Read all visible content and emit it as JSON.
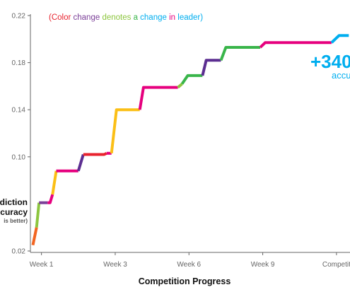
{
  "colors": {
    "axis": "#666666",
    "tick_text": "#666666",
    "red": "#e8232e",
    "orange": "#f26522",
    "pink": "#e6007e",
    "green": "#8dc63f",
    "blue": "#00aeef",
    "purple": "#7b3f98",
    "violet": "#5c2e91",
    "yellow": "#fbbf16",
    "darkgreen": "#39b54a"
  },
  "legend_note": {
    "words": [
      {
        "text": "(Color",
        "color": "#e8232e"
      },
      {
        "text": "change",
        "color": "#7b3f98"
      },
      {
        "text": "denotes",
        "color": "#8dc63f"
      },
      {
        "text": "a",
        "color": "#39b54a"
      },
      {
        "text": "change",
        "color": "#00aeef"
      },
      {
        "text": "in",
        "color": "#e6007e"
      },
      {
        "text": "leader)",
        "color": "#00aeef"
      }
    ]
  },
  "annotation": {
    "big": "+340",
    "sub": "accu",
    "color": "#00aeef"
  },
  "chart_data": {
    "type": "line",
    "xlabel": "Competition Progress",
    "ylabel_lines": [
      "diction",
      "curacy"
    ],
    "ylabel_sub": "is better)",
    "x_tick_labels": [
      "Week 1",
      "Week 3",
      "Week 6",
      "Week 9",
      "Competit"
    ],
    "x_tick_values": [
      0,
      3,
      6,
      9,
      12
    ],
    "y_tick_labels": [
      "0.02",
      "0.10",
      "0.14",
      "0.18",
      "0.22"
    ],
    "y_tick_values": [
      0.02,
      0.1,
      0.14,
      0.18,
      0.22
    ],
    "xlim": [
      -0.45,
      12.55
    ],
    "ylim": [
      0.02,
      0.22
    ],
    "grid": false,
    "series": [
      {
        "color": "#f26522",
        "points": [
          [
            -0.35,
            0.025
          ],
          [
            -0.2,
            0.04
          ]
        ]
      },
      {
        "color": "#8dc63f",
        "points": [
          [
            -0.2,
            0.04
          ],
          [
            -0.1,
            0.061
          ]
        ]
      },
      {
        "color": "#7b3f98",
        "points": [
          [
            -0.1,
            0.061
          ],
          [
            0.25,
            0.061
          ]
        ]
      },
      {
        "color": "#e6007e",
        "points": [
          [
            0.25,
            0.061
          ],
          [
            0.35,
            0.061
          ],
          [
            0.45,
            0.068
          ]
        ]
      },
      {
        "color": "#fbbf16",
        "points": [
          [
            0.45,
            0.068
          ],
          [
            0.6,
            0.088
          ]
        ]
      },
      {
        "color": "#e6007e",
        "points": [
          [
            0.6,
            0.088
          ],
          [
            1.5,
            0.088
          ]
        ]
      },
      {
        "color": "#5c2e91",
        "points": [
          [
            1.5,
            0.088
          ],
          [
            1.7,
            0.102
          ]
        ]
      },
      {
        "color": "#e8232e",
        "points": [
          [
            1.7,
            0.102
          ],
          [
            2.55,
            0.102
          ],
          [
            2.65,
            0.103
          ]
        ]
      },
      {
        "color": "#e6007e",
        "points": [
          [
            2.65,
            0.103
          ],
          [
            2.85,
            0.103
          ]
        ]
      },
      {
        "color": "#fbbf16",
        "points": [
          [
            2.85,
            0.103
          ],
          [
            3.05,
            0.14
          ],
          [
            4.0,
            0.14
          ]
        ]
      },
      {
        "color": "#e6007e",
        "points": [
          [
            4.0,
            0.14
          ],
          [
            4.15,
            0.159
          ],
          [
            5.55,
            0.159
          ]
        ]
      },
      {
        "color": "#8dc63f",
        "points": [
          [
            5.55,
            0.159
          ],
          [
            5.72,
            0.162
          ]
        ]
      },
      {
        "color": "#39b54a",
        "points": [
          [
            5.72,
            0.162
          ],
          [
            5.95,
            0.169
          ],
          [
            6.55,
            0.169
          ]
        ]
      },
      {
        "color": "#5c2e91",
        "points": [
          [
            6.55,
            0.169
          ],
          [
            6.7,
            0.182
          ],
          [
            7.3,
            0.182
          ]
        ]
      },
      {
        "color": "#39b54a",
        "points": [
          [
            7.3,
            0.182
          ],
          [
            7.5,
            0.193
          ],
          [
            8.9,
            0.193
          ]
        ]
      },
      {
        "color": "#e6007e",
        "points": [
          [
            8.9,
            0.193
          ],
          [
            9.1,
            0.197
          ],
          [
            11.8,
            0.197
          ]
        ]
      },
      {
        "color": "#00aeef",
        "points": [
          [
            11.8,
            0.197
          ],
          [
            12.1,
            0.203
          ],
          [
            12.5,
            0.203
          ]
        ]
      }
    ]
  }
}
